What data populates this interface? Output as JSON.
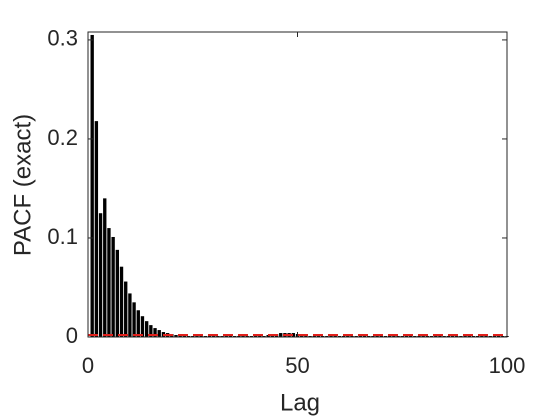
{
  "chart_data": {
    "type": "bar",
    "x_label": "Lag",
    "y_label": "PACF (exact)",
    "x": [
      1,
      2,
      3,
      4,
      5,
      6,
      7,
      8,
      9,
      10,
      11,
      12,
      13,
      14,
      15,
      16,
      17,
      18,
      19,
      20,
      21,
      22,
      23,
      24,
      25,
      26,
      27,
      28,
      29,
      30,
      31,
      32,
      33,
      34,
      35,
      36,
      37,
      38,
      39,
      40,
      41,
      42,
      43,
      44,
      45,
      46,
      47,
      48,
      49,
      50,
      51,
      52,
      53,
      54,
      55,
      56,
      57,
      58,
      59,
      60,
      61,
      62,
      63,
      64,
      65,
      66,
      67,
      68,
      69,
      70,
      71,
      72,
      73,
      74,
      75,
      76,
      77,
      78,
      79,
      80,
      81,
      82,
      83,
      84,
      85,
      86,
      87,
      88,
      89,
      90,
      91,
      92,
      93,
      94,
      95,
      96,
      97,
      98,
      99,
      100
    ],
    "values": [
      0.305,
      0.218,
      0.125,
      0.14,
      0.11,
      0.101,
      0.088,
      0.071,
      0.056,
      0.044,
      0.035,
      0.027,
      0.021,
      0.016,
      0.012,
      0.009,
      0.007,
      0.005,
      0.004,
      0.003,
      0.002,
      0.002,
      0.001,
      0.001,
      0.001,
      0.001,
      0.001,
      0.001,
      0.001,
      0.001,
      0.001,
      0.001,
      0.001,
      0.001,
      0.001,
      0.001,
      0.001,
      0.001,
      0.001,
      0.001,
      0.001,
      0.001,
      0.002,
      0.002,
      0.003,
      0.004,
      0.004,
      0.004,
      0.004,
      0.003,
      0.001,
      0.001,
      0.001,
      0.001,
      0.001,
      0.001,
      0.001,
      0.001,
      0.001,
      0.001,
      0.001,
      0.001,
      0.001,
      0.001,
      0.001,
      0.001,
      0.001,
      0.001,
      0.001,
      0.001,
      0.001,
      0.001,
      0.001,
      0.001,
      0.001,
      0.001,
      0.001,
      0.001,
      0.001,
      0.001,
      0.001,
      0.001,
      0.001,
      0.001,
      0.001,
      0.001,
      0.001,
      0.001,
      0.001,
      0.001,
      0.001,
      0.001,
      0.001,
      0.001,
      0.001,
      0.001,
      0.001,
      0.001,
      0.001,
      0.001
    ],
    "color": "#000000",
    "confidence_bound": 0.002,
    "bound_color": "#e0201b",
    "xlim": [
      0,
      100
    ],
    "xticks": [
      0,
      50,
      100
    ],
    "ylim": [
      0,
      0.308
    ],
    "yticks": [
      0,
      0.1,
      0.2,
      0.3
    ]
  }
}
